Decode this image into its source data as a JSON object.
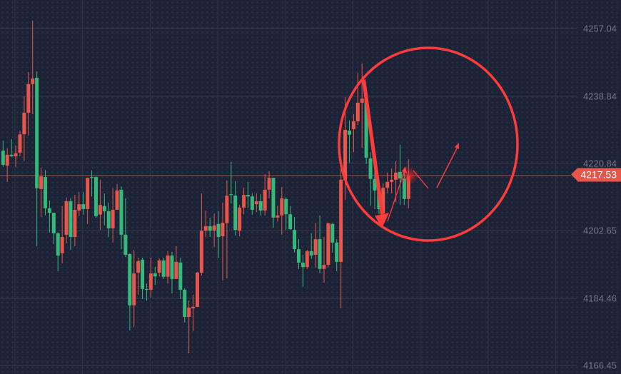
{
  "chart_data": {
    "type": "candlestick",
    "title": "",
    "y_axis": {
      "position": "right",
      "ticks": [
        4257.04,
        4238.84,
        4220.84,
        4202.65,
        4184.46,
        4166.45
      ],
      "range": [
        4166.45,
        4257.04
      ]
    },
    "grid": true,
    "colors": {
      "up": "#e8554a",
      "down": "#35b97a",
      "background": "#1d2336",
      "annotation": "#ff3b3b"
    },
    "current_price": {
      "value": 4217.53,
      "label": "4217.53"
    },
    "ohlc_order": [
      "open",
      "high",
      "low",
      "close"
    ],
    "candles": [
      [
        4224.2,
        4226.9,
        4219.9,
        4220.4
      ],
      [
        4220.2,
        4224.8,
        4215.8,
        4223.1
      ],
      [
        4223.1,
        4227.3,
        4222.5,
        4222.7
      ],
      [
        4222.7,
        4225.6,
        4219.8,
        4223.5
      ],
      [
        4223.7,
        4229.6,
        4222.7,
        4228.6
      ],
      [
        4228.6,
        4238.8,
        4221.4,
        4234.4
      ],
      [
        4234.4,
        4245.3,
        4228.3,
        4242.1
      ],
      [
        4242.1,
        4259.2,
        4234.0,
        4243.6
      ],
      [
        4243.8,
        4245.5,
        4198.5,
        4214.1
      ],
      [
        4213.9,
        4219.6,
        4206.4,
        4217.3
      ],
      [
        4217.1,
        4219.0,
        4206.8,
        4208.7
      ],
      [
        4208.7,
        4210.8,
        4202.2,
        4207.5
      ],
      [
        4207.5,
        4207.5,
        4199.1,
        4202.0
      ],
      [
        4202.0,
        4202.2,
        4191.8,
        4196.0
      ],
      [
        4196.6,
        4209.3,
        4193.9,
        4201.0
      ],
      [
        4201.6,
        4211.6,
        4199.3,
        4210.6
      ],
      [
        4210.6,
        4211.4,
        4197.5,
        4201.0
      ],
      [
        4201.0,
        4212.3,
        4198.5,
        4208.3
      ],
      [
        4208.1,
        4213.1,
        4206.6,
        4209.8
      ],
      [
        4209.8,
        4213.1,
        4207.0,
        4208.5
      ],
      [
        4208.5,
        4216.9,
        4204.5,
        4216.9
      ],
      [
        4217.1,
        4218.9,
        4211.9,
        4216.9
      ],
      [
        4217.1,
        4217.3,
        4206.2,
        4206.6
      ],
      [
        4207.0,
        4216.4,
        4202.9,
        4209.6
      ],
      [
        4209.3,
        4212.7,
        4204.1,
        4207.9
      ],
      [
        4207.9,
        4210.2,
        4201.0,
        4203.3
      ],
      [
        4203.3,
        4214.1,
        4199.5,
        4208.3
      ],
      [
        4208.3,
        4215.2,
        4208.3,
        4213.5
      ],
      [
        4213.7,
        4214.6,
        4197.7,
        4201.6
      ],
      [
        4201.6,
        4211.4,
        4195.6,
        4196.2
      ],
      [
        4196.4,
        4196.6,
        4175.9,
        4182.6
      ],
      [
        4182.6,
        4197.5,
        4176.8,
        4191.2
      ],
      [
        4191.4,
        4195.4,
        4185.5,
        4194.5
      ],
      [
        4194.9,
        4195.4,
        4184.3,
        4187.0
      ],
      [
        4187.0,
        4188.5,
        4183.9,
        4186.8
      ],
      [
        4186.8,
        4195.4,
        4184.7,
        4191.2
      ],
      [
        4191.2,
        4192.9,
        4188.1,
        4190.4
      ],
      [
        4191.4,
        4195.2,
        4190.4,
        4194.7
      ],
      [
        4194.7,
        4195.4,
        4189.7,
        4190.3
      ],
      [
        4190.3,
        4197.2,
        4188.5,
        4196.0
      ],
      [
        4196.0,
        4197.0,
        4185.8,
        4189.7
      ],
      [
        4189.7,
        4198.5,
        4189.7,
        4194.3
      ],
      [
        4194.1,
        4195.4,
        4184.3,
        4186.8
      ],
      [
        4186.8,
        4187.2,
        4178.0,
        4179.5
      ],
      [
        4179.5,
        4183.9,
        4169.7,
        4182.0
      ],
      [
        4181.8,
        4185.5,
        4175.7,
        4182.2
      ],
      [
        4182.2,
        4191.6,
        4182.2,
        4191.4
      ],
      [
        4191.4,
        4212.7,
        4190.6,
        4202.7
      ],
      [
        4202.7,
        4208.1,
        4201.0,
        4203.9
      ],
      [
        4203.9,
        4206.2,
        4201.0,
        4202.7
      ],
      [
        4202.7,
        4207.3,
        4198.3,
        4204.1
      ],
      [
        4204.5,
        4207.9,
        4195.4,
        4201.0
      ],
      [
        4201.2,
        4210.2,
        4189.3,
        4204.8
      ],
      [
        4204.7,
        4216.2,
        4189.9,
        4212.1
      ],
      [
        4212.5,
        4221.2,
        4210.0,
        4212.3
      ],
      [
        4212.1,
        4216.0,
        4201.4,
        4202.9
      ],
      [
        4202.7,
        4209.6,
        4201.2,
        4208.9
      ],
      [
        4208.9,
        4214.2,
        4207.1,
        4212.3
      ],
      [
        4212.3,
        4215.8,
        4208.9,
        4211.9
      ],
      [
        4211.9,
        4212.7,
        4207.0,
        4208.3
      ],
      [
        4209.8,
        4212.7,
        4207.7,
        4210.6
      ],
      [
        4210.6,
        4212.5,
        4206.8,
        4208.1
      ],
      [
        4208.1,
        4217.9,
        4206.8,
        4213.7
      ],
      [
        4213.7,
        4218.7,
        4211.4,
        4216.9
      ],
      [
        4216.9,
        4216.9,
        4203.5,
        4206.2
      ],
      [
        4206.2,
        4209.4,
        4205.2,
        4206.8
      ],
      [
        4206.8,
        4214.4,
        4201.6,
        4211.4
      ],
      [
        4211.2,
        4211.6,
        4202.9,
        4207.1
      ],
      [
        4207.1,
        4209.3,
        4202.9,
        4203.1
      ],
      [
        4202.9,
        4206.4,
        4196.8,
        4197.7
      ],
      [
        4197.7,
        4200.4,
        4192.4,
        4194.1
      ],
      [
        4194.1,
        4196.2,
        4187.6,
        4192.9
      ],
      [
        4192.9,
        4197.5,
        4192.4,
        4197.2
      ],
      [
        4197.2,
        4202.0,
        4195.1,
        4196.0
      ],
      [
        4196.2,
        4204.8,
        4192.8,
        4200.4
      ],
      [
        4200.4,
        4206.8,
        4191.2,
        4192.4
      ],
      [
        4192.4,
        4201.0,
        4188.7,
        4193.5
      ],
      [
        4193.5,
        4204.8,
        4192.8,
        4204.7
      ],
      [
        4204.5,
        4204.7,
        4196.8,
        4199.5
      ],
      [
        4199.5,
        4200.4,
        4191.8,
        4194.3
      ],
      [
        4194.3,
        4219.6,
        4181.8,
        4216.4
      ],
      [
        4216.2,
        4238.6,
        4211.0,
        4229.8
      ],
      [
        4229.6,
        4232.3,
        4221.0,
        4228.5
      ],
      [
        4230.0,
        4234.0,
        4223.8,
        4232.1
      ],
      [
        4232.1,
        4245.1,
        4231.1,
        4237.1
      ],
      [
        4237.1,
        4247.6,
        4225.0,
        4238.2
      ],
      [
        4238.2,
        4240.5,
        4220.6,
        4222.3
      ],
      [
        4222.1,
        4223.8,
        4209.4,
        4216.6
      ],
      [
        4216.6,
        4219.2,
        4208.5,
        4213.5
      ],
      [
        4213.5,
        4216.2,
        4207.1,
        4208.5
      ],
      [
        4207.3,
        4215.4,
        4205.8,
        4214.2
      ],
      [
        4214.2,
        4218.3,
        4212.7,
        4215.8
      ],
      [
        4215.8,
        4219.4,
        4212.7,
        4216.4
      ],
      [
        4216.4,
        4221.4,
        4210.4,
        4218.3
      ],
      [
        4218.5,
        4225.8,
        4209.6,
        4216.7
      ],
      [
        4216.7,
        4219.2,
        4209.6,
        4211.2
      ],
      [
        4211.2,
        4221.9,
        4208.7,
        4217.53
      ]
    ],
    "annotations": [
      "hand-drawn red circle around recent candles",
      "red down arrow",
      "red up arrows"
    ]
  }
}
